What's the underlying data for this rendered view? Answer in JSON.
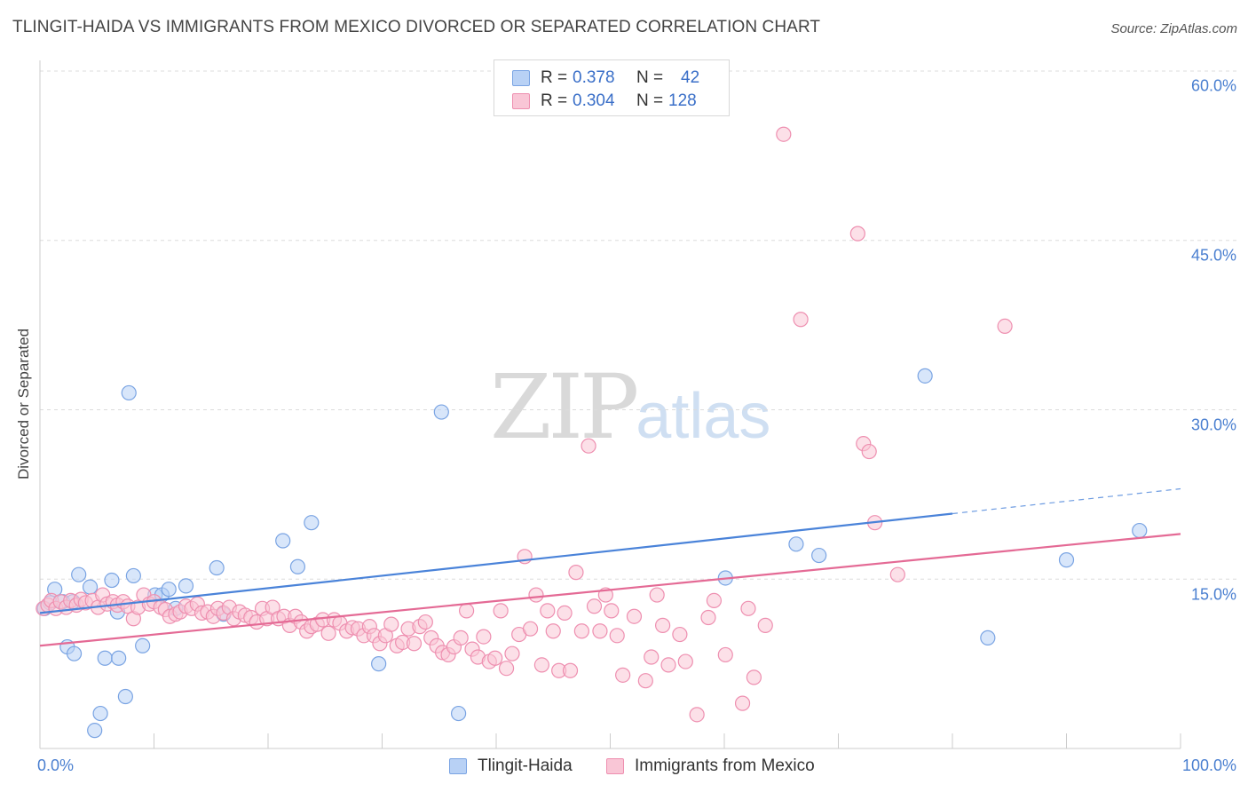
{
  "title": "TLINGIT-HAIDA VS IMMIGRANTS FROM MEXICO DIVORCED OR SEPARATED CORRELATION CHART",
  "source": "Source: ZipAtlas.com",
  "watermark": {
    "zip": "ZIP",
    "atlas": "atlas"
  },
  "legend": {
    "rows": [
      {
        "r_label": "R =",
        "r_value": "0.378",
        "n_label": "N =",
        "n_value": "42",
        "fill": "#b8d1f5",
        "stroke": "#7aa4e3"
      },
      {
        "r_label": "R =",
        "r_value": "0.304",
        "n_label": "N =",
        "n_value": "128",
        "fill": "#f9c6d6",
        "stroke": "#ee8fb0"
      }
    ]
  },
  "bottom_legend": {
    "items": [
      {
        "label": "Tlingit-Haida",
        "fill": "#b8d1f5",
        "stroke": "#7aa4e3"
      },
      {
        "label": "Immigrants from Mexico",
        "fill": "#f9c6d6",
        "stroke": "#ee8fb0"
      }
    ]
  },
  "chart_data": {
    "type": "scatter",
    "title": "TLINGIT-HAIDA VS IMMIGRANTS FROM MEXICO DIVORCED OR SEPARATED CORRELATION CHART",
    "xlabel": "",
    "ylabel": "Divorced or Separated",
    "xlim": [
      0,
      100
    ],
    "ylim": [
      0,
      60
    ],
    "x_tick_labels": [
      "0.0%",
      "100.0%"
    ],
    "y_ticks": [
      15,
      30,
      45,
      60
    ],
    "y_tick_labels": [
      "15.0%",
      "30.0%",
      "45.0%",
      "60.0%"
    ],
    "grid": true,
    "legend_position": "top-center",
    "series": [
      {
        "name": "Tlingit-Haida",
        "color": "#4a83d9",
        "fill": "#b8d1f5",
        "stroke": "#7aa4e3",
        "points": [
          [
            0.4,
            12.4
          ],
          [
            0.9,
            12.9
          ],
          [
            1.3,
            14.1
          ],
          [
            2.0,
            13.0
          ],
          [
            2.4,
            9.0
          ],
          [
            2.9,
            13.0
          ],
          [
            3.0,
            8.4
          ],
          [
            3.4,
            15.4
          ],
          [
            4.4,
            14.3
          ],
          [
            4.8,
            1.6
          ],
          [
            5.3,
            3.1
          ],
          [
            5.7,
            8.0
          ],
          [
            6.3,
            14.9
          ],
          [
            6.8,
            12.1
          ],
          [
            6.9,
            8.0
          ],
          [
            7.5,
            4.6
          ],
          [
            7.8,
            31.5
          ],
          [
            8.2,
            15.3
          ],
          [
            9.0,
            9.1
          ],
          [
            10.1,
            13.6
          ],
          [
            10.7,
            13.6
          ],
          [
            11.3,
            14.1
          ],
          [
            11.9,
            12.4
          ],
          [
            12.8,
            14.4
          ],
          [
            15.5,
            16.0
          ],
          [
            16.1,
            11.9
          ],
          [
            21.3,
            18.4
          ],
          [
            22.6,
            16.1
          ],
          [
            23.8,
            20.0
          ],
          [
            29.7,
            7.5
          ],
          [
            35.2,
            29.8
          ],
          [
            36.7,
            3.1
          ],
          [
            60.1,
            15.1
          ],
          [
            66.3,
            18.1
          ],
          [
            68.3,
            17.1
          ],
          [
            77.6,
            33.0
          ],
          [
            83.1,
            9.8
          ],
          [
            90.0,
            16.7
          ],
          [
            96.4,
            19.3
          ]
        ]
      },
      {
        "name": "Immigrants from Mexico",
        "color": "#e46a95",
        "fill": "#f9c6d6",
        "stroke": "#ee8fb0",
        "points": [
          [
            0.3,
            12.4
          ],
          [
            0.7,
            12.7
          ],
          [
            1.0,
            13.1
          ],
          [
            1.4,
            12.4
          ],
          [
            1.8,
            13.0
          ],
          [
            2.3,
            12.5
          ],
          [
            2.7,
            13.1
          ],
          [
            3.2,
            12.7
          ],
          [
            3.6,
            13.2
          ],
          [
            4.0,
            12.9
          ],
          [
            4.6,
            13.1
          ],
          [
            5.1,
            12.5
          ],
          [
            5.5,
            13.6
          ],
          [
            5.9,
            12.8
          ],
          [
            6.4,
            13.0
          ],
          [
            6.8,
            12.7
          ],
          [
            7.3,
            13.0
          ],
          [
            7.7,
            12.6
          ],
          [
            8.2,
            11.5
          ],
          [
            8.6,
            12.5
          ],
          [
            9.1,
            13.6
          ],
          [
            9.6,
            12.8
          ],
          [
            10.0,
            13.0
          ],
          [
            10.6,
            12.5
          ],
          [
            11.0,
            12.3
          ],
          [
            11.4,
            11.7
          ],
          [
            11.9,
            11.9
          ],
          [
            12.3,
            12.1
          ],
          [
            12.8,
            12.6
          ],
          [
            13.3,
            12.4
          ],
          [
            13.8,
            12.8
          ],
          [
            14.2,
            12.0
          ],
          [
            14.7,
            12.1
          ],
          [
            15.2,
            11.7
          ],
          [
            15.6,
            12.4
          ],
          [
            16.1,
            12.0
          ],
          [
            16.6,
            12.5
          ],
          [
            17.0,
            11.5
          ],
          [
            17.5,
            12.1
          ],
          [
            18.0,
            11.8
          ],
          [
            18.5,
            11.6
          ],
          [
            19.0,
            11.2
          ],
          [
            19.5,
            12.4
          ],
          [
            19.9,
            11.5
          ],
          [
            20.4,
            12.5
          ],
          [
            20.9,
            11.5
          ],
          [
            21.4,
            11.7
          ],
          [
            21.9,
            10.9
          ],
          [
            22.4,
            11.7
          ],
          [
            22.9,
            11.2
          ],
          [
            23.4,
            10.4
          ],
          [
            23.8,
            10.8
          ],
          [
            24.3,
            11.0
          ],
          [
            24.8,
            11.4
          ],
          [
            25.3,
            10.2
          ],
          [
            25.8,
            11.4
          ],
          [
            26.3,
            11.1
          ],
          [
            26.9,
            10.4
          ],
          [
            27.4,
            10.7
          ],
          [
            27.9,
            10.6
          ],
          [
            28.4,
            10.0
          ],
          [
            28.9,
            10.8
          ],
          [
            29.3,
            10.0
          ],
          [
            29.8,
            9.3
          ],
          [
            30.3,
            10.0
          ],
          [
            30.8,
            11.0
          ],
          [
            31.3,
            9.1
          ],
          [
            31.8,
            9.4
          ],
          [
            32.3,
            10.6
          ],
          [
            32.8,
            9.3
          ],
          [
            33.3,
            10.8
          ],
          [
            33.8,
            11.2
          ],
          [
            34.3,
            9.8
          ],
          [
            34.8,
            9.1
          ],
          [
            35.3,
            8.5
          ],
          [
            35.8,
            8.3
          ],
          [
            36.3,
            9.0
          ],
          [
            36.9,
            9.8
          ],
          [
            37.4,
            12.2
          ],
          [
            37.9,
            8.8
          ],
          [
            38.4,
            8.1
          ],
          [
            38.9,
            9.9
          ],
          [
            39.4,
            7.7
          ],
          [
            39.9,
            8.0
          ],
          [
            40.4,
            12.2
          ],
          [
            40.9,
            7.1
          ],
          [
            41.4,
            8.4
          ],
          [
            42.0,
            10.1
          ],
          [
            42.5,
            17.0
          ],
          [
            43.0,
            10.6
          ],
          [
            43.5,
            13.6
          ],
          [
            44.0,
            7.4
          ],
          [
            44.5,
            12.2
          ],
          [
            45.0,
            10.4
          ],
          [
            45.5,
            6.9
          ],
          [
            46.0,
            12.0
          ],
          [
            46.5,
            6.9
          ],
          [
            47.0,
            15.6
          ],
          [
            47.5,
            10.4
          ],
          [
            48.1,
            26.8
          ],
          [
            48.6,
            12.6
          ],
          [
            49.1,
            10.4
          ],
          [
            49.6,
            13.6
          ],
          [
            50.1,
            12.2
          ],
          [
            50.6,
            10.0
          ],
          [
            51.1,
            6.5
          ],
          [
            52.1,
            11.7
          ],
          [
            53.1,
            6.0
          ],
          [
            53.6,
            8.1
          ],
          [
            54.1,
            13.6
          ],
          [
            54.6,
            10.9
          ],
          [
            55.1,
            7.4
          ],
          [
            56.1,
            10.1
          ],
          [
            56.6,
            7.7
          ],
          [
            57.6,
            3.0
          ],
          [
            58.6,
            11.6
          ],
          [
            59.1,
            13.1
          ],
          [
            60.1,
            8.3
          ],
          [
            61.6,
            4.0
          ],
          [
            62.1,
            12.4
          ],
          [
            62.6,
            6.3
          ],
          [
            63.6,
            10.9
          ],
          [
            65.2,
            54.4
          ],
          [
            66.7,
            38.0
          ],
          [
            71.7,
            45.6
          ],
          [
            72.2,
            27.0
          ],
          [
            72.7,
            26.3
          ],
          [
            73.2,
            20.0
          ],
          [
            75.2,
            15.4
          ],
          [
            84.6,
            37.4
          ]
        ]
      }
    ],
    "trend_lines": [
      {
        "series": "Tlingit-Haida",
        "x": [
          0,
          80,
          100
        ],
        "y": [
          12.0,
          20.8,
          23.0
        ],
        "dashed_from_x": 80
      },
      {
        "series": "Immigrants from Mexico",
        "x": [
          0,
          100
        ],
        "y": [
          9.1,
          19.0
        ]
      }
    ]
  }
}
